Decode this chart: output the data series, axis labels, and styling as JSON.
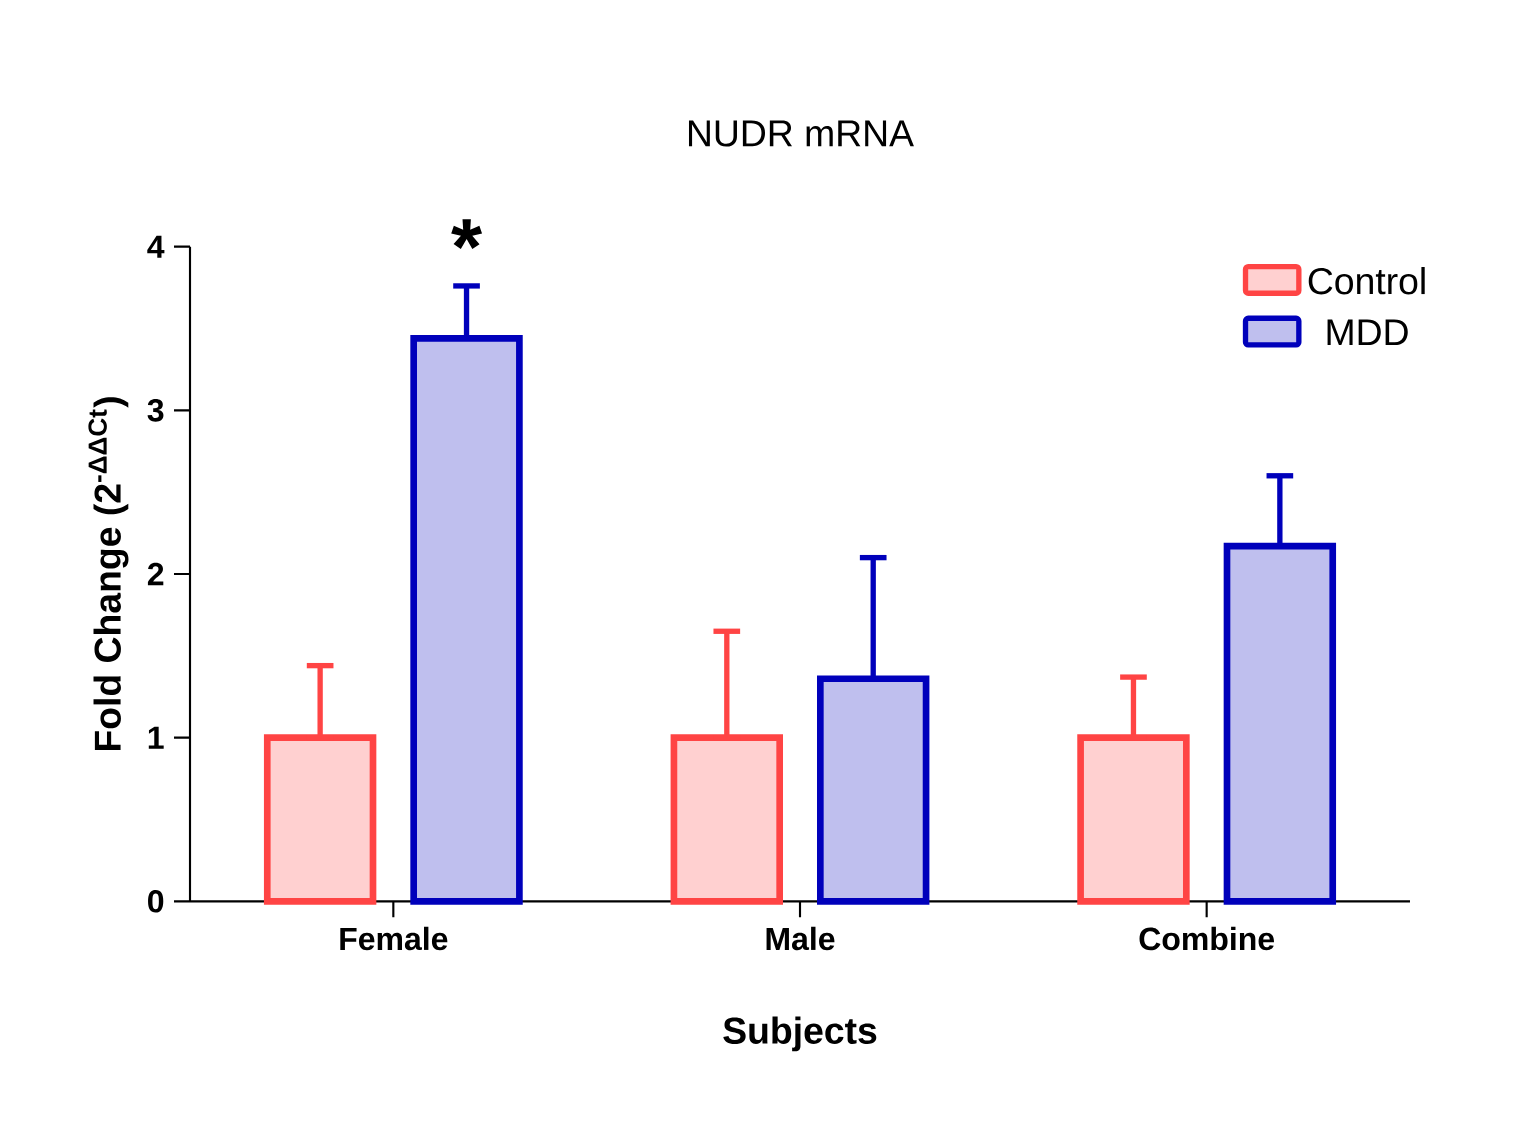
{
  "chart_data": {
    "type": "bar",
    "title": "NUDR mRNA",
    "xlabel": "Subjects",
    "ylabel": "Fold Change (2$^{-ΔΔCt}$)",
    "categories": [
      "Female",
      "Male",
      "Combine"
    ],
    "series": [
      {
        "name": "Control",
        "color": "#ff4444",
        "values": [
          1.0,
          1.0,
          1.0
        ],
        "errors": [
          [
            1.0,
            1.44
          ],
          [
            1.0,
            1.65
          ],
          [
            1.0,
            1.37
          ]
        ]
      },
      {
        "name": "MDD",
        "color": "#0000bb",
        "values": [
          3.44,
          1.36,
          2.17
        ],
        "errors": [
          [
            3.44,
            3.76
          ],
          [
            1.36,
            2.1
          ],
          [
            2.17,
            2.6
          ]
        ]
      }
    ],
    "ylim": [
      0,
      4
    ],
    "yticks": [
      0,
      1,
      2,
      3,
      4
    ],
    "legend": "top right",
    "annotations": [
      "*"
    ]
  }
}
